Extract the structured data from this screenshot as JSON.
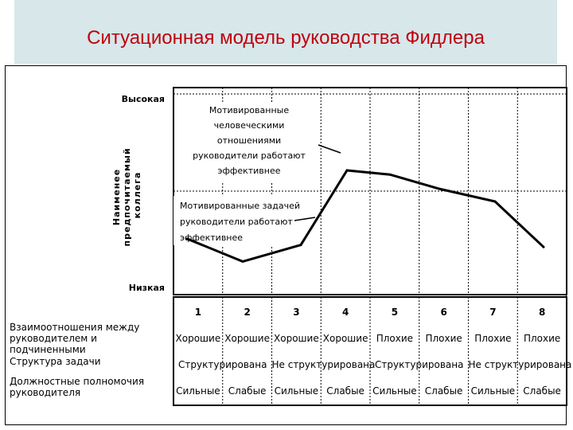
{
  "page": {
    "title": "Ситуационная модель руководства Фидлера"
  },
  "chart_data": {
    "type": "line",
    "ylabel": "Наименее предпочитаемый коллега",
    "ytop_label": "Высокая",
    "ybottom_label": "Низкая",
    "grid": true,
    "categories": [
      "1",
      "2",
      "3",
      "4",
      "5",
      "6",
      "7",
      "8"
    ],
    "series": [
      {
        "values": [
          0.27,
          0.16,
          0.24,
          0.6,
          0.58,
          0.51,
          0.45,
          0.23
        ]
      }
    ],
    "annotations": [
      "Мотивированные человеческими отношениями руководители работают эффективнее",
      "Мотивированные задачей руководители работают эффективнее"
    ],
    "table": {
      "rows": [
        {
          "label": "Взаимоотношения между руководителем и подчиненными",
          "cells": [
            "Хорошие",
            "Хорошие",
            "Хорошие",
            "Хорошие",
            "Плохие",
            "Плохие",
            "Плохие",
            "Плохие"
          ]
        },
        {
          "label": "Структура задачи",
          "cells": [
            "Структурирована",
            "Не структурирована",
            "Структурирована",
            "Не структурирована"
          ]
        },
        {
          "label": "Должностные полномочия руководителя",
          "cells": [
            "Сильные",
            "Слабые",
            "Сильные",
            "Слабые",
            "Сильные",
            "Слабые",
            "Сильные",
            "Слабые"
          ]
        }
      ]
    }
  }
}
